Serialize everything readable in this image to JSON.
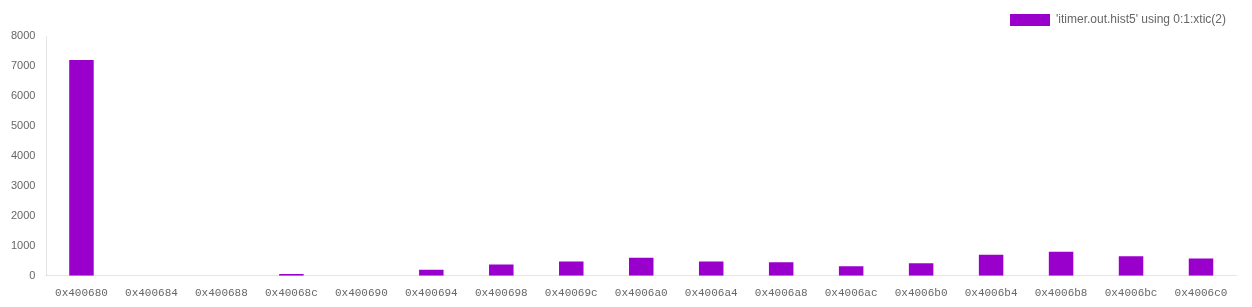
{
  "chart_data": {
    "type": "bar",
    "categories": [
      "0x400680",
      "0x400684",
      "0x400688",
      "0x40068c",
      "0x400690",
      "0x400694",
      "0x400698",
      "0x40069c",
      "0x4006a0",
      "0x4006a4",
      "0x4006a8",
      "0x4006ac",
      "0x4006b0",
      "0x4006b4",
      "0x4006b8",
      "0x4006bc",
      "0x4006c0"
    ],
    "series": [
      {
        "name": "'itimer.out.hist5' using 0:1:xtic(2)",
        "color": "#9900cc",
        "values": [
          7200,
          0,
          0,
          60,
          0,
          200,
          380,
          480,
          600,
          480,
          450,
          320,
          420,
          700,
          800,
          650,
          580
        ]
      }
    ],
    "ylim": [
      0,
      8000
    ],
    "yticks": [
      0,
      1000,
      2000,
      3000,
      4000,
      5000,
      6000,
      7000,
      8000
    ],
    "grid": false,
    "legend": "upper right"
  }
}
